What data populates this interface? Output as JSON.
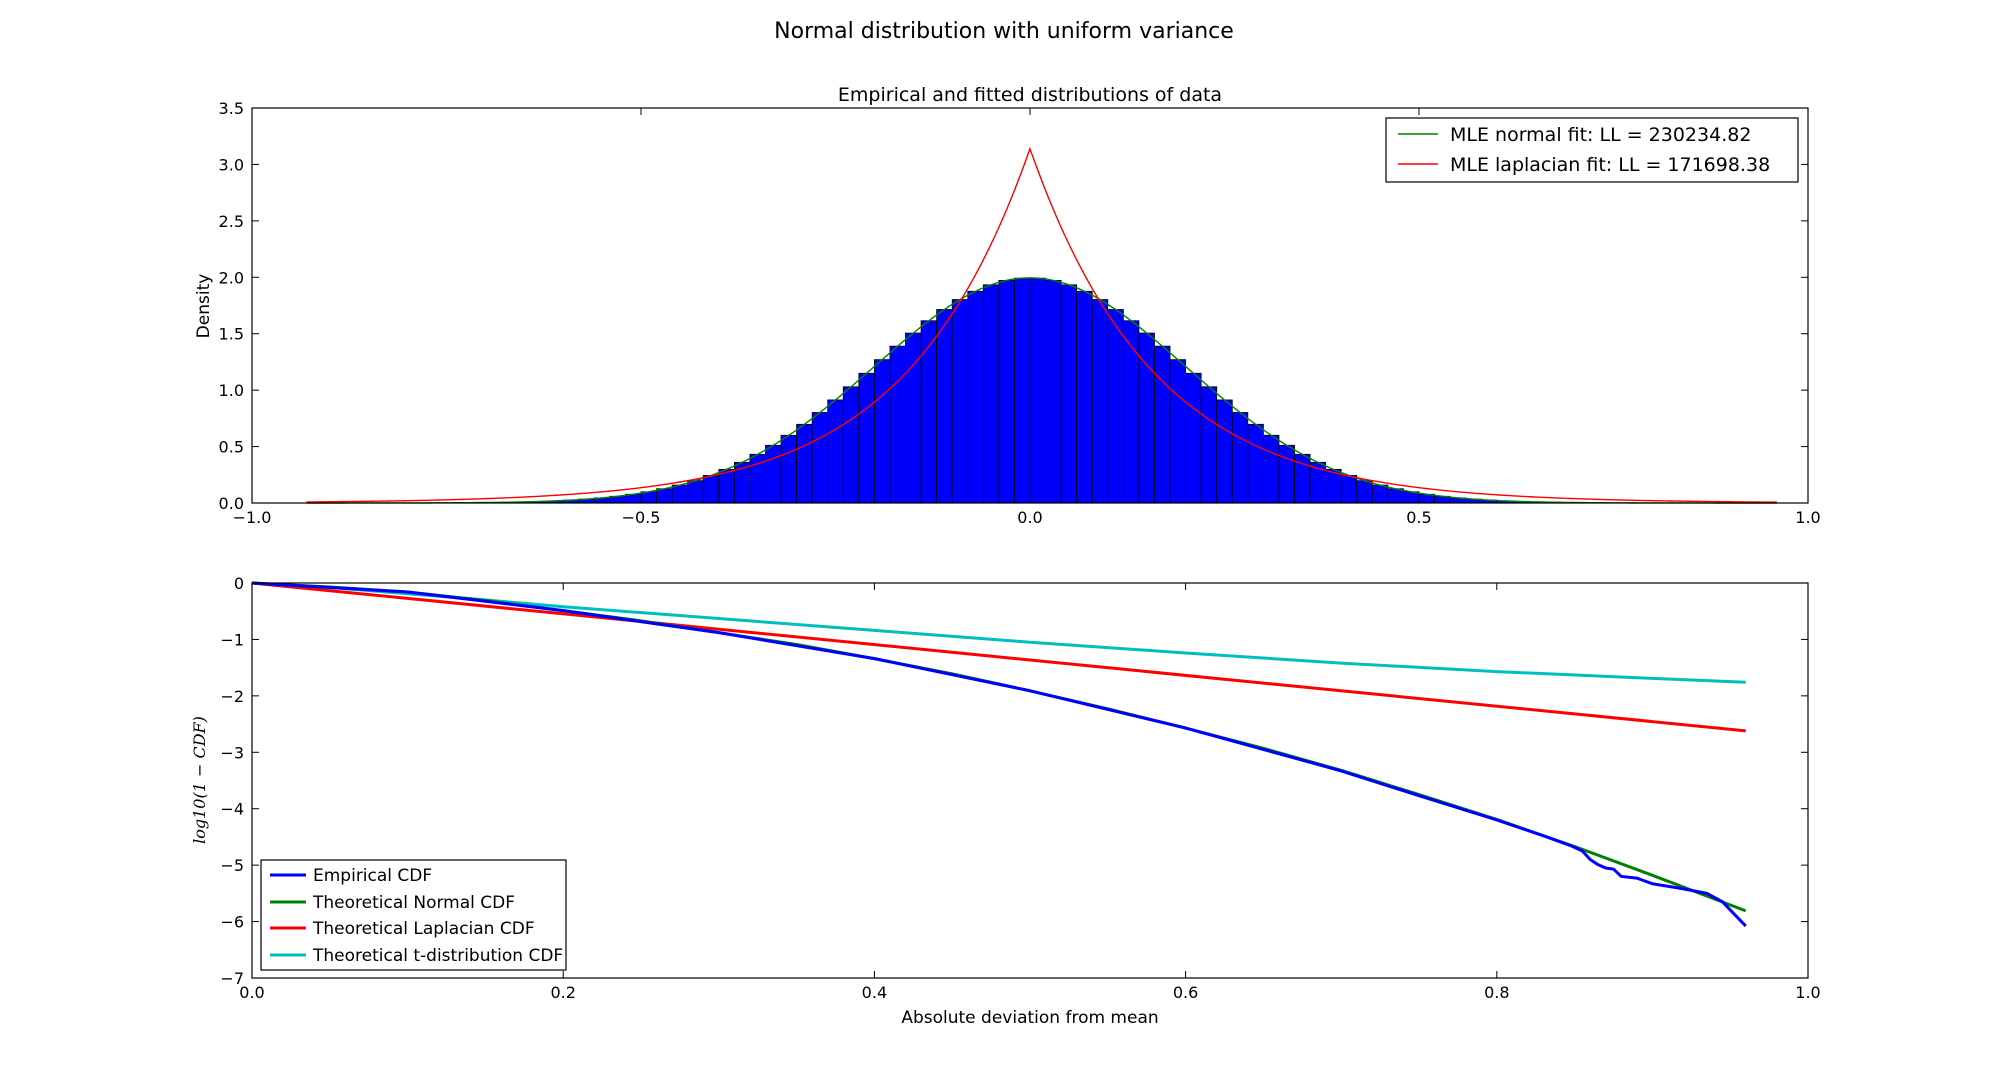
{
  "figure": {
    "suptitle": "Normal distribution with uniform variance"
  },
  "chart_data": [
    {
      "type": "bar",
      "title": "Empirical and fitted distributions of data",
      "xlabel": "",
      "ylabel": "Density",
      "xlim": [
        -1.0,
        1.0
      ],
      "ylim": [
        0.0,
        3.5
      ],
      "xticks": [
        "−1.0",
        "−0.5",
        "0.0",
        "0.5",
        "1.0"
      ],
      "yticks": [
        "0.0",
        "0.5",
        "1.0",
        "1.5",
        "2.0",
        "2.5",
        "3.0",
        "3.5"
      ],
      "histogram": {
        "color": "#0000ff",
        "edge_color": "#000000",
        "bin_start": -0.9,
        "bin_end": 0.9,
        "bin_width": 0.02,
        "mean": 0.0,
        "std": 0.2
      },
      "series": [
        {
          "name": "MLE normal fit: LL = 230234.82",
          "color": "#008000",
          "kind": "normal",
          "mu": 0.0,
          "sigma": 0.2,
          "x_range": [
            -0.93,
            0.96
          ]
        },
        {
          "name": "MLE laplacian fit: LL = 171698.38",
          "color": "#ff0000",
          "kind": "laplace",
          "mu": 0.0,
          "b": 0.1592,
          "x_range": [
            -0.93,
            0.96
          ]
        }
      ],
      "legend": "top-right"
    },
    {
      "type": "line",
      "title": "",
      "xlabel": "Absolute deviation from mean",
      "ylabel": "log10(1 − CDF)",
      "xlim": [
        0.0,
        1.0
      ],
      "ylim": [
        -7.0,
        0.0
      ],
      "xticks": [
        "0.0",
        "0.2",
        "0.4",
        "0.6",
        "0.8",
        "1.0"
      ],
      "yticks": [
        "0",
        "−1",
        "−2",
        "−3",
        "−4",
        "−5",
        "−6",
        "−7"
      ],
      "series": [
        {
          "name": "Empirical CDF",
          "color": "#0000ff",
          "x": [
            0.0,
            0.1,
            0.2,
            0.3,
            0.4,
            0.5,
            0.6,
            0.7,
            0.75,
            0.8,
            0.83,
            0.848,
            0.855,
            0.86,
            0.865,
            0.87,
            0.875,
            0.88,
            0.89,
            0.9,
            0.92,
            0.935,
            0.945,
            0.96
          ],
          "y": [
            0.0,
            -0.16,
            -0.49,
            -0.88,
            -1.34,
            -1.91,
            -2.57,
            -3.33,
            -3.77,
            -4.2,
            -4.48,
            -4.66,
            -4.75,
            -4.9,
            -4.99,
            -5.05,
            -5.07,
            -5.2,
            -5.23,
            -5.33,
            -5.42,
            -5.5,
            -5.65,
            -6.08
          ]
        },
        {
          "name": "Theoretical Normal CDF",
          "color": "#008000",
          "x": [
            0.0,
            0.05,
            0.1,
            0.15,
            0.2,
            0.25,
            0.3,
            0.35,
            0.4,
            0.45,
            0.5,
            0.55,
            0.6,
            0.65,
            0.7,
            0.75,
            0.8,
            0.85,
            0.9,
            0.96
          ],
          "y": [
            0.0,
            -0.07,
            -0.16,
            -0.31,
            -0.49,
            -0.67,
            -0.88,
            -1.09,
            -1.34,
            -1.61,
            -1.91,
            -2.23,
            -2.57,
            -2.93,
            -3.32,
            -3.75,
            -4.19,
            -4.67,
            -5.18,
            -5.81
          ]
        },
        {
          "name": "Theoretical Laplacian CDF",
          "color": "#ff0000",
          "x": [
            0.0,
            0.96
          ],
          "y": [
            0.0,
            -2.62
          ]
        },
        {
          "name": "Theoretical t-distribution CDF",
          "color": "#00bfbf",
          "x": [
            0.0,
            0.05,
            0.1,
            0.15,
            0.2,
            0.3,
            0.4,
            0.5,
            0.6,
            0.7,
            0.8,
            0.9,
            0.96
          ],
          "y": [
            0.0,
            -0.08,
            -0.19,
            -0.3,
            -0.42,
            -0.63,
            -0.84,
            -1.05,
            -1.24,
            -1.42,
            -1.57,
            -1.69,
            -1.76
          ]
        }
      ],
      "legend": "lower-left"
    }
  ]
}
